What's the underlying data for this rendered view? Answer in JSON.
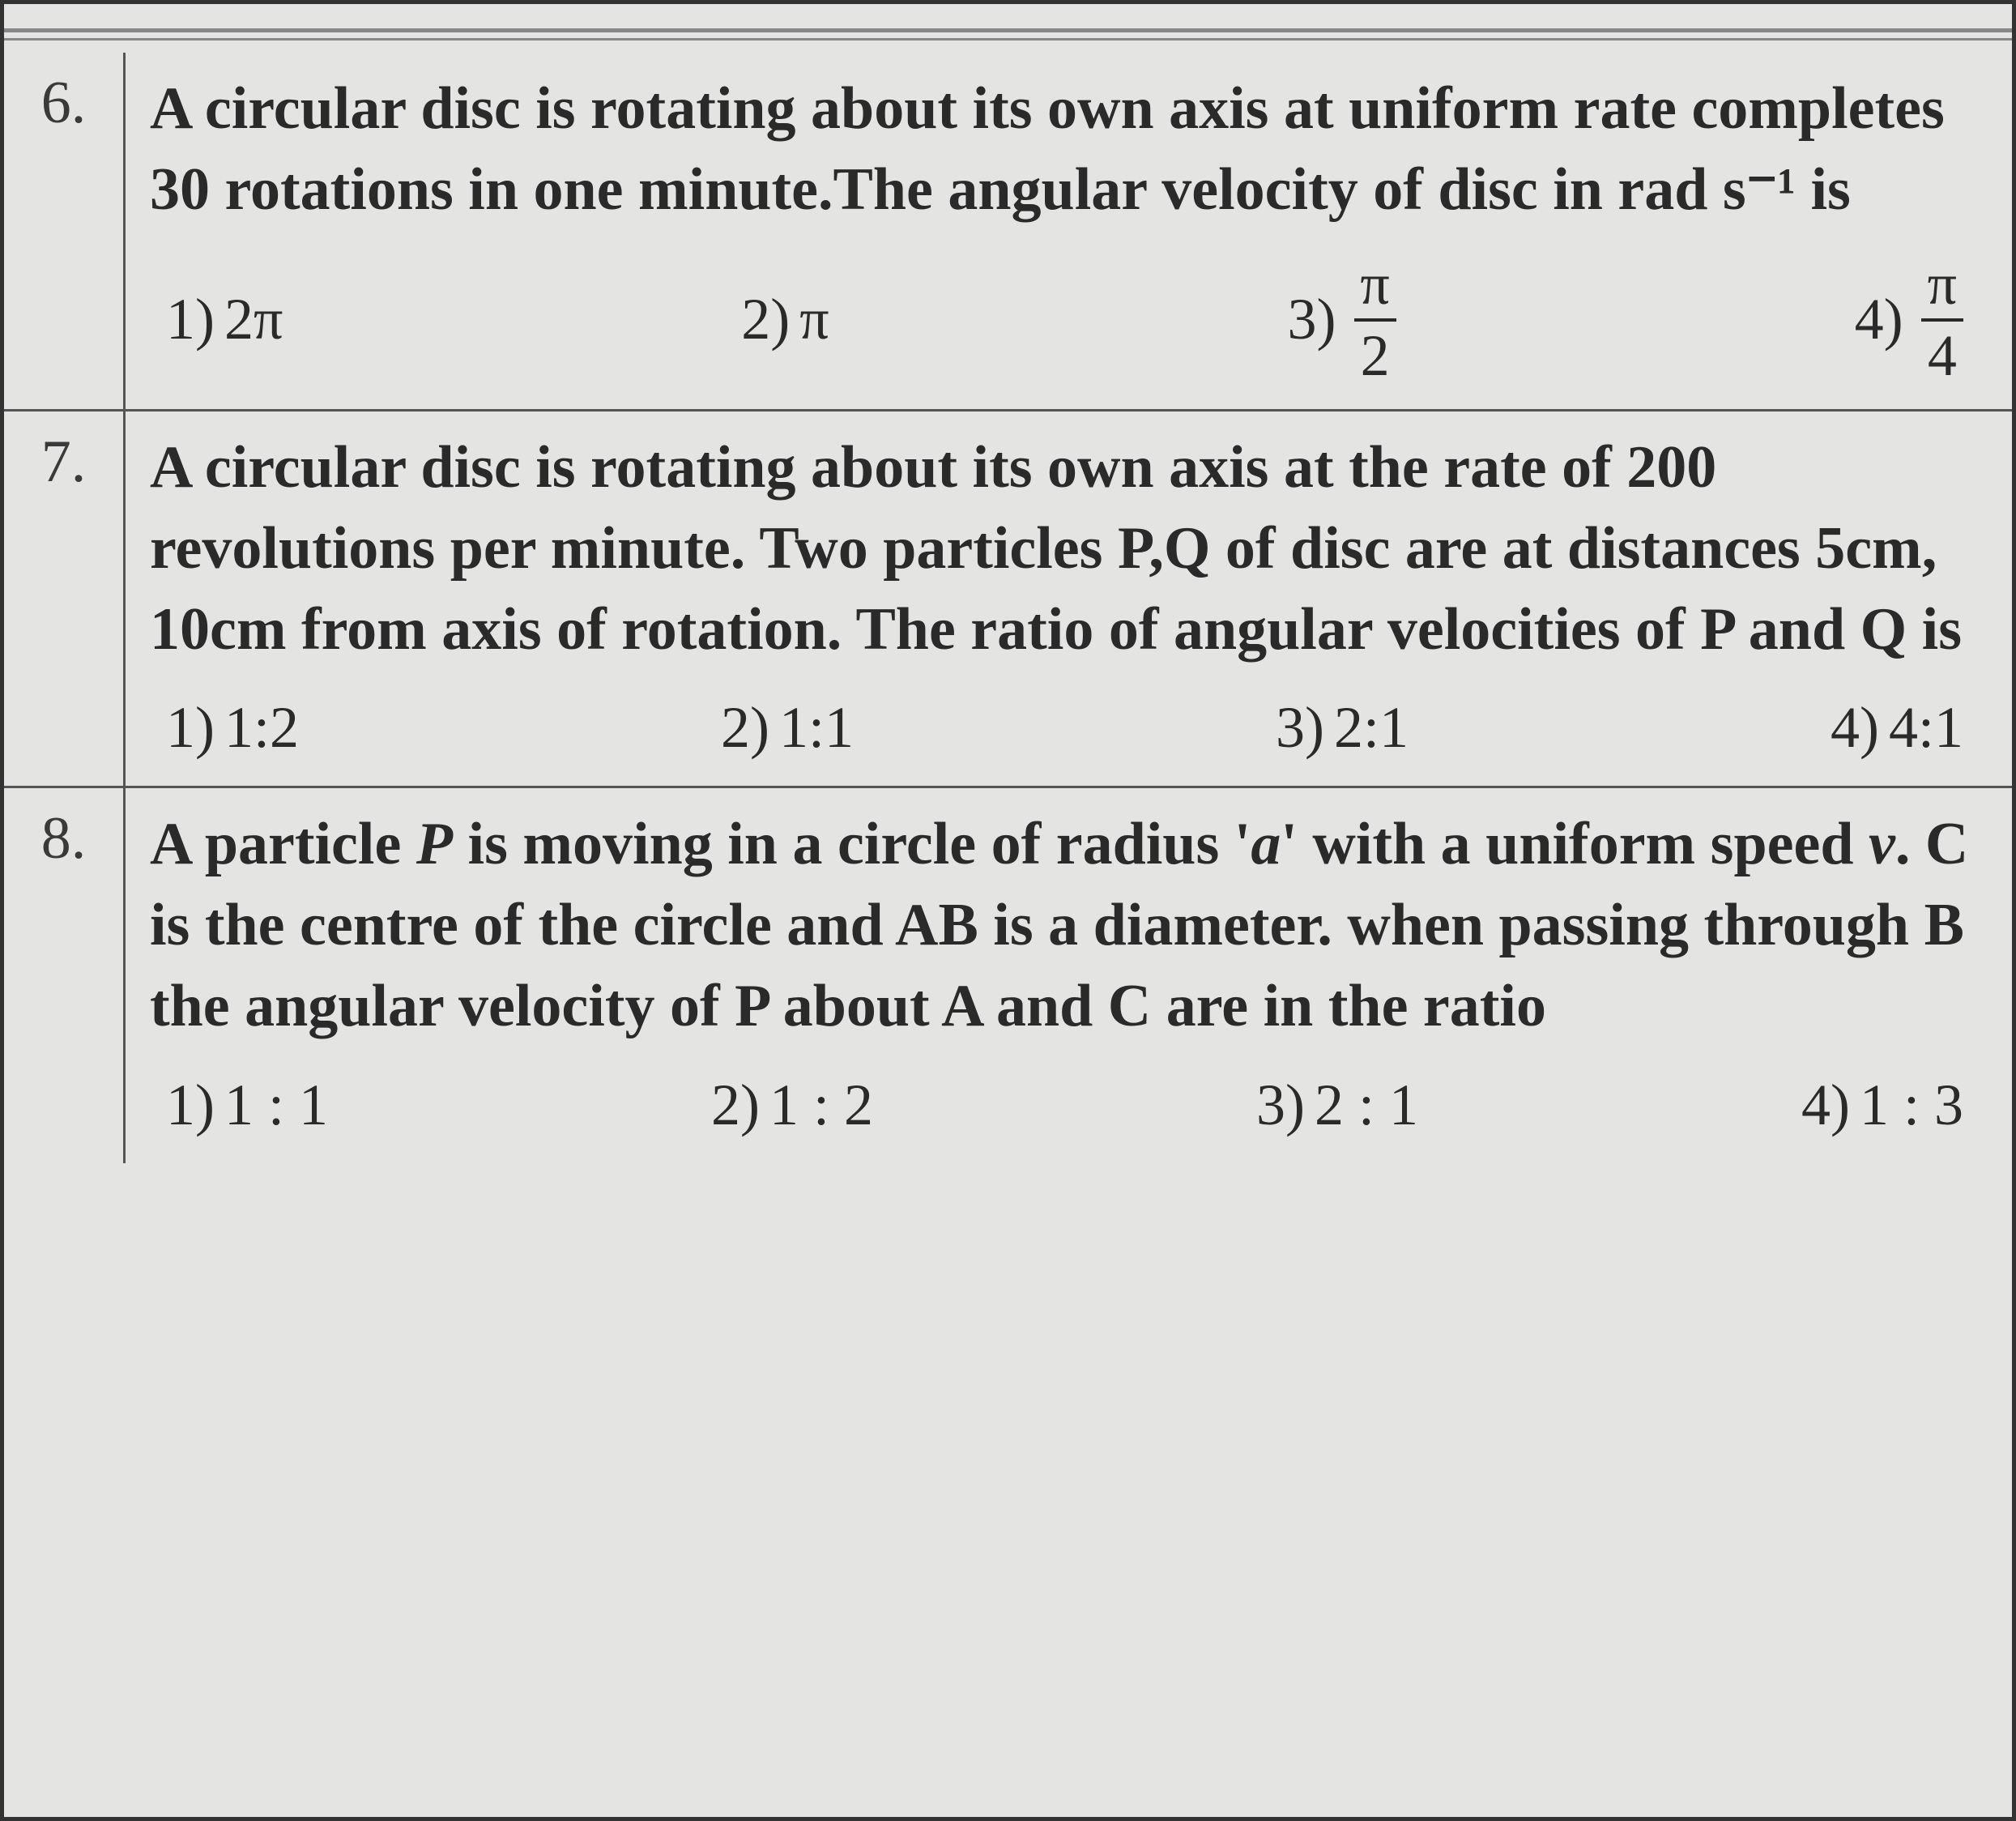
{
  "questions": [
    {
      "number": "6.",
      "text": "A circular disc is rotating about its own axis at uniform rate completes 30 rotations in one minute.The angular velocity of disc in rad s⁻¹ is",
      "options": [
        {
          "label": "1)",
          "value": "2π",
          "type": "text"
        },
        {
          "label": "2)",
          "value": "π",
          "type": "text"
        },
        {
          "label": "3)",
          "num": "π",
          "den": "2",
          "type": "frac"
        },
        {
          "label": "4)",
          "num": "π",
          "den": "4",
          "type": "frac"
        }
      ]
    },
    {
      "number": "7.",
      "text": "A circular disc is rotating about its own axis at the rate of 200 revolutions per minute. Two particles P,Q of disc are at distances 5cm, 10cm from axis of rotation. The ratio of angular velocities of P and Q is",
      "options": [
        {
          "label": "1)",
          "value": "1:2",
          "type": "text"
        },
        {
          "label": "2)",
          "value": "1:1",
          "type": "text"
        },
        {
          "label": "3)",
          "value": "2:1",
          "type": "text"
        },
        {
          "label": "4)",
          "value": "4:1",
          "type": "text"
        }
      ]
    },
    {
      "number": "8.",
      "text_parts": [
        {
          "text": "A particle ",
          "italic": false
        },
        {
          "text": "P",
          "italic": true
        },
        {
          "text": " is moving in a circle of radius '",
          "italic": false
        },
        {
          "text": "a",
          "italic": true
        },
        {
          "text": "' with a uniform speed ",
          "italic": false
        },
        {
          "text": "v",
          "italic": true
        },
        {
          "text": ". C is the centre of the circle and AB is a diameter. when passing through B the angular velocity of P about A and C are in the ratio",
          "italic": false
        }
      ],
      "options": [
        {
          "label": "1)",
          "value": "1 : 1",
          "type": "text"
        },
        {
          "label": "2)",
          "value": "1 : 2",
          "type": "text"
        },
        {
          "label": "3)",
          "value": "2 : 1",
          "type": "text"
        },
        {
          "label": "4)",
          "value": "1 : 3",
          "type": "text"
        }
      ]
    }
  ],
  "styling": {
    "background_color": "#e4e4e2",
    "border_color": "#333",
    "text_color": "#2a2a2a",
    "grid_color": "#555",
    "question_fontsize": 74,
    "option_fontsize": 72,
    "font_family": "Times New Roman"
  }
}
